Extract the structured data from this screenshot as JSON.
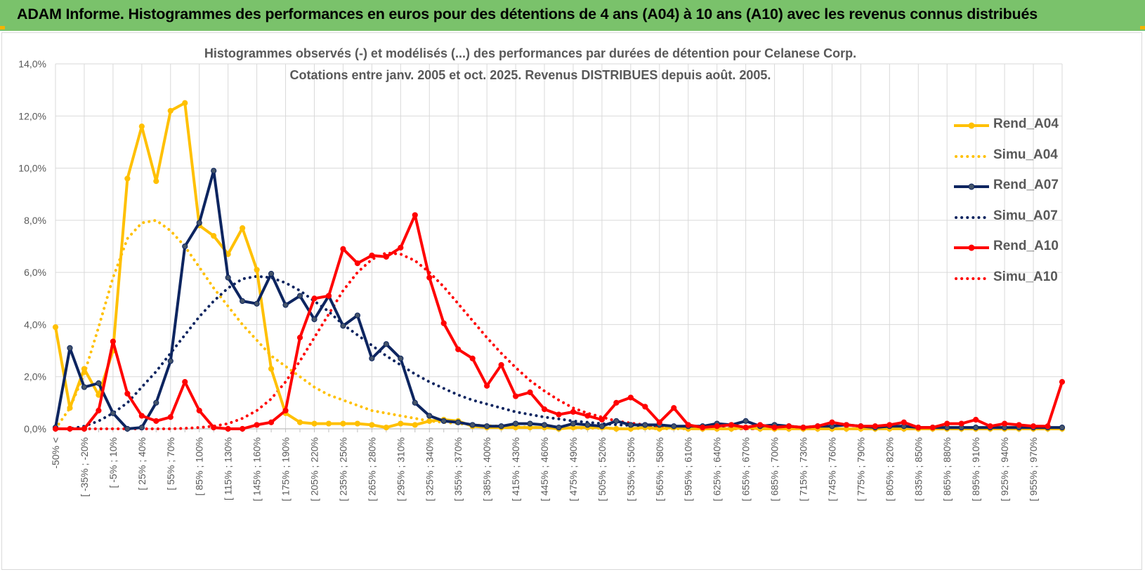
{
  "header": {
    "title": "ADAM Informe. Histogrammes des performances en euros pour des détentions de 4 ans (A04) à 10 ans (A10) avec les revenus connus distribués"
  },
  "chart_data": {
    "type": "line",
    "title_lines": [
      "Histogrammes observés (-) et modélisés (...) des performances par durées de détention pour Celanese Corp.",
      "Cotations entre janv. 2005 et oct. 2025.  Revenus DISTRIBUES depuis août. 2005."
    ],
    "xlabel": "",
    "ylabel": "",
    "ylim": [
      0,
      14
    ],
    "y_unit": "%",
    "yticks": [
      "0,0%",
      "2,0%",
      "4,0%",
      "6,0%",
      "8,0%",
      "10,0%",
      "12,0%",
      "14,0%"
    ],
    "grid": true,
    "legend_position": "right",
    "x_labels_shown": [
      "-50% <",
      "[ -35% ; -20%",
      "[ -5% ; 10%",
      "[ 25% ; 40%",
      "[ 55% ; 70%",
      "[ 85% ; 100%",
      "[ 115% ; 130%",
      "[ 145% ; 160%",
      "[ 175% ; 190%",
      "[ 205% ; 220%",
      "[ 235% ; 250%",
      "[ 265% ; 280%",
      "[ 295% ; 310%",
      "[ 325% ; 340%",
      "[ 355% ; 370%",
      "[ 385% ; 400%",
      "[ 415% ; 430%",
      "[ 445% ; 460%",
      "[ 475% ; 490%",
      "[ 505% ; 520%",
      "[ 535% ; 550%",
      "[ 565% ; 580%",
      "[ 595% ; 610%",
      "[ 625% ; 640%",
      "[ 655% ; 670%",
      "[ 685% ; 700%",
      "[ 715% ; 730%",
      "[ 745% ; 760%",
      "[ 775% ; 790%",
      "[ 805% ; 820%",
      "[ 835% ; 850%",
      "[ 865% ; 880%",
      "[ 895% ; 910%",
      "[ 925% ; 940%",
      "[ 955% ; 970%"
    ],
    "series": [
      {
        "name": "Rend_A04",
        "style": "solid",
        "color": "#ffc000",
        "values": [
          3.9,
          0.8,
          2.3,
          1.3,
          3.0,
          9.6,
          11.6,
          9.5,
          12.2,
          12.5,
          7.8,
          7.4,
          6.7,
          7.7,
          6.1,
          2.3,
          0.6,
          0.25,
          0.2,
          0.2,
          0.2,
          0.2,
          0.15,
          0.05,
          0.2,
          0.15,
          0.3,
          0.35,
          0.3,
          0.1,
          0.05,
          0.05,
          0.05,
          0.05,
          0.05,
          0.0,
          0.05,
          0.05,
          0.05,
          0.0,
          0.0,
          0.05,
          0.0,
          0.05,
          0.0,
          0.0,
          0.0,
          0.0,
          0.05,
          0.0,
          0.0,
          0.0,
          0.0,
          0.0,
          0.0,
          0.0,
          0.0,
          0.0,
          0.0,
          0.0,
          0.0,
          0.0,
          0.0,
          0.0,
          0.0,
          0.0,
          0.0,
          0.0,
          0.0,
          0.0,
          0.0
        ]
      },
      {
        "name": "Simu_A04",
        "style": "dotted",
        "color": "#ffc000",
        "values": [
          0.0,
          0.8,
          2.1,
          3.9,
          5.8,
          7.3,
          7.9,
          8.0,
          7.6,
          7.0,
          6.2,
          5.4,
          4.7,
          4.0,
          3.4,
          2.8,
          2.4,
          2.0,
          1.6,
          1.3,
          1.1,
          0.9,
          0.7,
          0.6,
          0.5,
          0.4,
          0.3,
          0.25,
          0.2,
          0.15,
          0.12,
          0.1,
          0.08,
          0.06,
          0.05,
          0.04,
          0.03,
          0.02,
          0.02,
          0.01,
          0.01,
          0.01,
          0.0,
          0.0,
          0.0,
          0.0,
          0.0,
          0.0,
          0.0,
          0.0,
          0.0,
          0.0,
          0.0,
          0.0,
          0.0,
          0.0,
          0.0,
          0.0,
          0.0,
          0.0,
          0.0,
          0.0,
          0.0,
          0.0,
          0.0,
          0.0,
          0.0,
          0.0,
          0.0,
          0.0,
          0.0
        ]
      },
      {
        "name": "Rend_A07",
        "style": "solid",
        "color": "#0d2560",
        "values": [
          0.05,
          3.1,
          1.6,
          1.75,
          0.6,
          0.0,
          0.05,
          1.0,
          2.6,
          7.0,
          7.9,
          9.9,
          5.8,
          4.9,
          4.8,
          5.95,
          4.75,
          5.1,
          4.2,
          5.1,
          3.95,
          4.35,
          2.7,
          3.25,
          2.7,
          1.0,
          0.5,
          0.3,
          0.25,
          0.15,
          0.1,
          0.1,
          0.2,
          0.2,
          0.15,
          0.05,
          0.2,
          0.15,
          0.1,
          0.3,
          0.15,
          0.15,
          0.15,
          0.1,
          0.1,
          0.1,
          0.2,
          0.15,
          0.3,
          0.1,
          0.15,
          0.1,
          0.05,
          0.1,
          0.1,
          0.15,
          0.1,
          0.05,
          0.1,
          0.1,
          0.05,
          0.05,
          0.05,
          0.05,
          0.05,
          0.05,
          0.05,
          0.05,
          0.05,
          0.05,
          0.05
        ]
      },
      {
        "name": "Simu_A07",
        "style": "dotted",
        "color": "#0d2560",
        "values": [
          0.0,
          0.0,
          0.1,
          0.3,
          0.6,
          1.0,
          1.6,
          2.2,
          2.9,
          3.6,
          4.3,
          4.9,
          5.4,
          5.75,
          5.85,
          5.8,
          5.6,
          5.3,
          4.9,
          4.5,
          4.0,
          3.6,
          3.2,
          2.8,
          2.45,
          2.1,
          1.8,
          1.55,
          1.3,
          1.1,
          0.95,
          0.8,
          0.65,
          0.55,
          0.45,
          0.38,
          0.3,
          0.25,
          0.2,
          0.16,
          0.13,
          0.1,
          0.08,
          0.06,
          0.05,
          0.04,
          0.03,
          0.02,
          0.02,
          0.01,
          0.01,
          0.01,
          0.0,
          0.0,
          0.0,
          0.0,
          0.0,
          0.0,
          0.0,
          0.0,
          0.0,
          0.0,
          0.0,
          0.0,
          0.0,
          0.0,
          0.0,
          0.0,
          0.0,
          0.0,
          0.0
        ]
      },
      {
        "name": "Rend_A10",
        "style": "solid",
        "color": "#ff0000",
        "values": [
          0.0,
          0.0,
          0.0,
          0.7,
          3.35,
          1.35,
          0.5,
          0.3,
          0.45,
          1.8,
          0.7,
          0.05,
          0.0,
          0.0,
          0.15,
          0.25,
          0.7,
          3.5,
          5.0,
          5.1,
          6.9,
          6.35,
          6.65,
          6.6,
          6.95,
          8.2,
          5.8,
          4.05,
          3.05,
          2.7,
          1.65,
          2.45,
          1.25,
          1.4,
          0.75,
          0.55,
          0.65,
          0.5,
          0.35,
          1.0,
          1.2,
          0.85,
          0.25,
          0.8,
          0.15,
          0.05,
          0.1,
          0.15,
          0.05,
          0.15,
          0.05,
          0.1,
          0.05,
          0.1,
          0.25,
          0.15,
          0.1,
          0.1,
          0.15,
          0.25,
          0.05,
          0.05,
          0.2,
          0.2,
          0.35,
          0.1,
          0.2,
          0.15,
          0.1,
          0.1,
          1.8
        ]
      },
      {
        "name": "Simu_A10",
        "style": "dotted",
        "color": "#ff0000",
        "values": [
          0.0,
          0.0,
          0.0,
          0.0,
          0.0,
          0.0,
          0.0,
          0.0,
          0.0,
          0.02,
          0.05,
          0.1,
          0.2,
          0.4,
          0.7,
          1.15,
          1.8,
          2.6,
          3.5,
          4.4,
          5.3,
          6.0,
          6.5,
          6.75,
          6.7,
          6.45,
          6.0,
          5.45,
          4.8,
          4.15,
          3.5,
          2.9,
          2.35,
          1.85,
          1.45,
          1.1,
          0.8,
          0.6,
          0.45,
          0.3,
          0.22,
          0.15,
          0.1,
          0.07,
          0.05,
          0.03,
          0.02,
          0.01,
          0.01,
          0.0,
          0.0,
          0.0,
          0.0,
          0.0,
          0.0,
          0.0,
          0.0,
          0.0,
          0.0,
          0.0,
          0.0,
          0.0,
          0.0,
          0.0,
          0.0,
          0.0,
          0.0,
          0.0,
          0.0,
          0.0,
          0.0
        ]
      }
    ]
  }
}
